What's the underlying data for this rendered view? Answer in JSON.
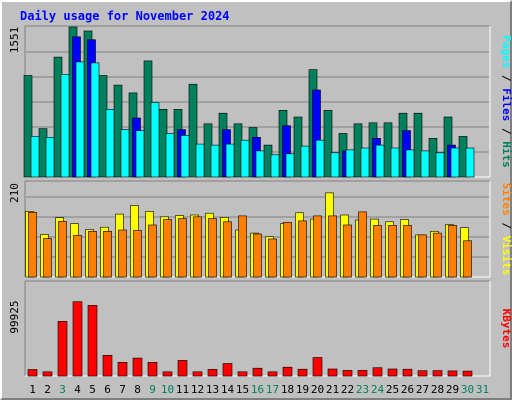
{
  "chart_data": {
    "type": "bar",
    "title": "Daily usage for November 2024",
    "categories": [
      "1",
      "2",
      "3",
      "4",
      "5",
      "6",
      "7",
      "8",
      "9",
      "10",
      "11",
      "12",
      "13",
      "14",
      "15",
      "16",
      "17",
      "18",
      "19",
      "20",
      "21",
      "22",
      "23",
      "24",
      "25",
      "26",
      "27",
      "28",
      "29",
      "30",
      "31"
    ],
    "weekend_categories": [
      "3",
      "9",
      "10",
      "16",
      "17",
      "23",
      "24",
      "30",
      "31"
    ],
    "panels": [
      {
        "name": "hits-files-pages",
        "max_label": "1551",
        "ylim": [
          0,
          1551
        ],
        "legend": [
          "Pages",
          "Files",
          "Hits"
        ],
        "series": [
          {
            "name": "Hits",
            "color": "#00805c",
            "values": [
              1050,
              500,
              1240,
              1551,
              1510,
              1050,
              950,
              870,
              1200,
              700,
              700,
              960,
              550,
              660,
              550,
              510,
              330,
              690,
              620,
              1110,
              690,
              450,
              550,
              560,
              560,
              660,
              660,
              400,
              620,
              420,
              0
            ]
          },
          {
            "name": "Files",
            "color": "#0000ff",
            "values": [
              0,
              0,
              0,
              1450,
              1420,
              0,
              0,
              610,
              0,
              0,
              490,
              0,
              0,
              490,
              0,
              410,
              0,
              530,
              0,
              900,
              0,
              270,
              0,
              400,
              0,
              480,
              0,
              0,
              330,
              0,
              0
            ]
          },
          {
            "name": "Pages",
            "color": "#00ffff",
            "values": [
              420,
              410,
              1060,
              1190,
              1180,
              700,
              490,
              480,
              770,
              450,
              430,
              340,
              330,
              340,
              380,
              270,
              230,
              240,
              320,
              380,
              250,
              280,
              300,
              330,
              300,
              280,
              270,
              250,
              300,
              300,
              0
            ]
          }
        ]
      },
      {
        "name": "visits-sites",
        "max_label": "210",
        "ylim": [
          0,
          210
        ],
        "legend": [
          "Sites",
          "Visits"
        ],
        "series": [
          {
            "name": "Visits",
            "color": "#ffff00",
            "values": [
              145,
              94,
              131,
              118,
              105,
              110,
              139,
              158,
              145,
              133,
              136,
              137,
              141,
              132,
              104,
              97,
              89,
              118,
              142,
              128,
              186,
              137,
              126,
              128,
              122,
              127,
              93,
              101,
              116,
              109,
              0
            ]
          },
          {
            "name": "Sites",
            "color": "#ff8000",
            "values": [
              143,
              85,
              123,
              92,
              101,
              101,
              104,
              103,
              115,
              127,
              129,
              133,
              129,
              122,
              135,
              95,
              84,
              121,
              124,
              135,
              135,
              115,
              144,
              114,
              114,
              114,
              93,
              97,
              114,
              80,
              0
            ]
          }
        ]
      },
      {
        "name": "kbytes",
        "max_label": "99925",
        "ylim": [
          0,
          99925
        ],
        "legend": [
          "KBytes"
        ],
        "series": [
          {
            "name": "KBytes",
            "color": "#ff0000",
            "values": [
              6900,
              4500,
              58000,
              79000,
              75000,
              22000,
              14600,
              19000,
              14600,
              4500,
              16600,
              4500,
              7000,
              13300,
              4500,
              8300,
              4500,
              9400,
              7200,
              19700,
              7400,
              6000,
              6000,
              8800,
              7400,
              7200,
              5600,
              5700,
              5400,
              5200,
              0
            ]
          }
        ]
      }
    ],
    "colors": {
      "weekday_label": "#000000",
      "weekend_label": "#00805c"
    }
  }
}
